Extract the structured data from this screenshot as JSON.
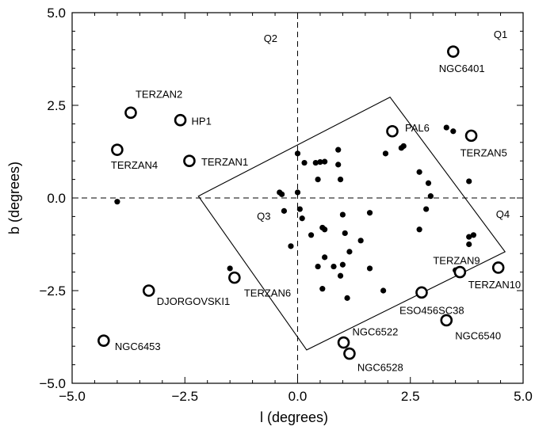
{
  "chart_data": {
    "type": "scatter",
    "xlabel": "l (degrees)",
    "ylabel": "b (degrees)",
    "xlim": [
      -5.0,
      5.0
    ],
    "ylim": [
      -5.0,
      5.0
    ],
    "x_ticks": [
      -5.0,
      -2.5,
      0.0,
      2.5,
      5.0
    ],
    "y_ticks": [
      -5.0,
      -2.5,
      0.0,
      2.5,
      5.0
    ],
    "x_tick_labels": [
      "−5.0",
      "−2.5",
      "0.0",
      "2.5",
      "5.0"
    ],
    "y_tick_labels": [
      "−5.0",
      "−2.5",
      "0.0",
      "2.5",
      "5.0"
    ],
    "grid": false,
    "quadrant_labels": [
      {
        "text": "Q1",
        "l": 4.5,
        "b": 4.4
      },
      {
        "text": "Q2",
        "l": -0.6,
        "b": 4.3
      },
      {
        "text": "Q3",
        "l": -0.75,
        "b": -0.5
      },
      {
        "text": "Q4",
        "l": 4.55,
        "b": -0.45
      }
    ],
    "survey_field_polygon": [
      [
        -2.2,
        0.05
      ],
      [
        2.05,
        2.72
      ],
      [
        4.6,
        -1.45
      ],
      [
        0.2,
        -4.1
      ]
    ],
    "labeled_clusters": [
      {
        "name": "NGC6401",
        "l": 3.45,
        "b": 3.95
      },
      {
        "name": "TERZAN2",
        "l": -3.7,
        "b": 2.3
      },
      {
        "name": "HP1",
        "l": -2.6,
        "b": 2.1
      },
      {
        "name": "PAL6",
        "l": 2.1,
        "b": 1.8
      },
      {
        "name": "TERZAN5",
        "l": 3.85,
        "b": 1.68
      },
      {
        "name": "TERZAN4",
        "l": -4.0,
        "b": 1.3
      },
      {
        "name": "TERZAN1",
        "l": -2.4,
        "b": 1.0
      },
      {
        "name": "TERZAN9",
        "l": 3.6,
        "b": -2.0
      },
      {
        "name": "TERZAN10",
        "l": 4.45,
        "b": -1.88
      },
      {
        "name": "TERZAN6",
        "l": -1.4,
        "b": -2.15
      },
      {
        "name": "DJORGOVSKI1",
        "l": -3.3,
        "b": -2.5
      },
      {
        "name": "ESO456SC38",
        "l": 2.75,
        "b": -2.55
      },
      {
        "name": "NGC6540",
        "l": 3.3,
        "b": -3.3
      },
      {
        "name": "NGC6453",
        "l": -4.3,
        "b": -3.85
      },
      {
        "name": "NGC6522",
        "l": 1.02,
        "b": -3.9
      },
      {
        "name": "NGC6528",
        "l": 1.15,
        "b": -4.2
      }
    ],
    "fields": [
      [
        -4.0,
        -0.1
      ],
      [
        -1.5,
        -1.9
      ],
      [
        -0.4,
        0.15
      ],
      [
        -0.35,
        0.1
      ],
      [
        -0.3,
        -0.35
      ],
      [
        -0.15,
        -1.3
      ],
      [
        0.0,
        0.15
      ],
      [
        0.0,
        1.2
      ],
      [
        0.05,
        -0.3
      ],
      [
        0.1,
        -0.55
      ],
      [
        0.15,
        0.95
      ],
      [
        0.4,
        0.95
      ],
      [
        0.5,
        0.97
      ],
      [
        0.6,
        0.98
      ],
      [
        0.45,
        0.5
      ],
      [
        0.3,
        -1.0
      ],
      [
        0.55,
        -0.8
      ],
      [
        0.6,
        -0.85
      ],
      [
        0.6,
        -1.6
      ],
      [
        0.45,
        -1.85
      ],
      [
        0.55,
        -2.45
      ],
      [
        0.8,
        -1.85
      ],
      [
        0.95,
        -2.1
      ],
      [
        0.9,
        1.3
      ],
      [
        0.9,
        0.9
      ],
      [
        0.95,
        0.5
      ],
      [
        1.0,
        -0.45
      ],
      [
        1.0,
        -1.8
      ],
      [
        1.05,
        -0.95
      ],
      [
        1.1,
        -2.7
      ],
      [
        1.15,
        -1.45
      ],
      [
        1.4,
        -1.15
      ],
      [
        1.6,
        -0.4
      ],
      [
        1.9,
        -2.5
      ],
      [
        1.95,
        1.2
      ],
      [
        2.3,
        1.35
      ],
      [
        2.35,
        1.4
      ],
      [
        1.6,
        -1.9
      ],
      [
        2.7,
        0.7
      ],
      [
        2.7,
        -0.85
      ],
      [
        2.9,
        0.4
      ],
      [
        2.95,
        0.05
      ],
      [
        2.85,
        -0.3
      ],
      [
        3.3,
        1.9
      ],
      [
        3.45,
        1.8
      ],
      [
        3.8,
        0.45
      ],
      [
        3.8,
        -1.05
      ],
      [
        3.9,
        -1.0
      ],
      [
        3.8,
        -1.25
      ],
      [
        3.5,
        -1.95
      ]
    ]
  }
}
